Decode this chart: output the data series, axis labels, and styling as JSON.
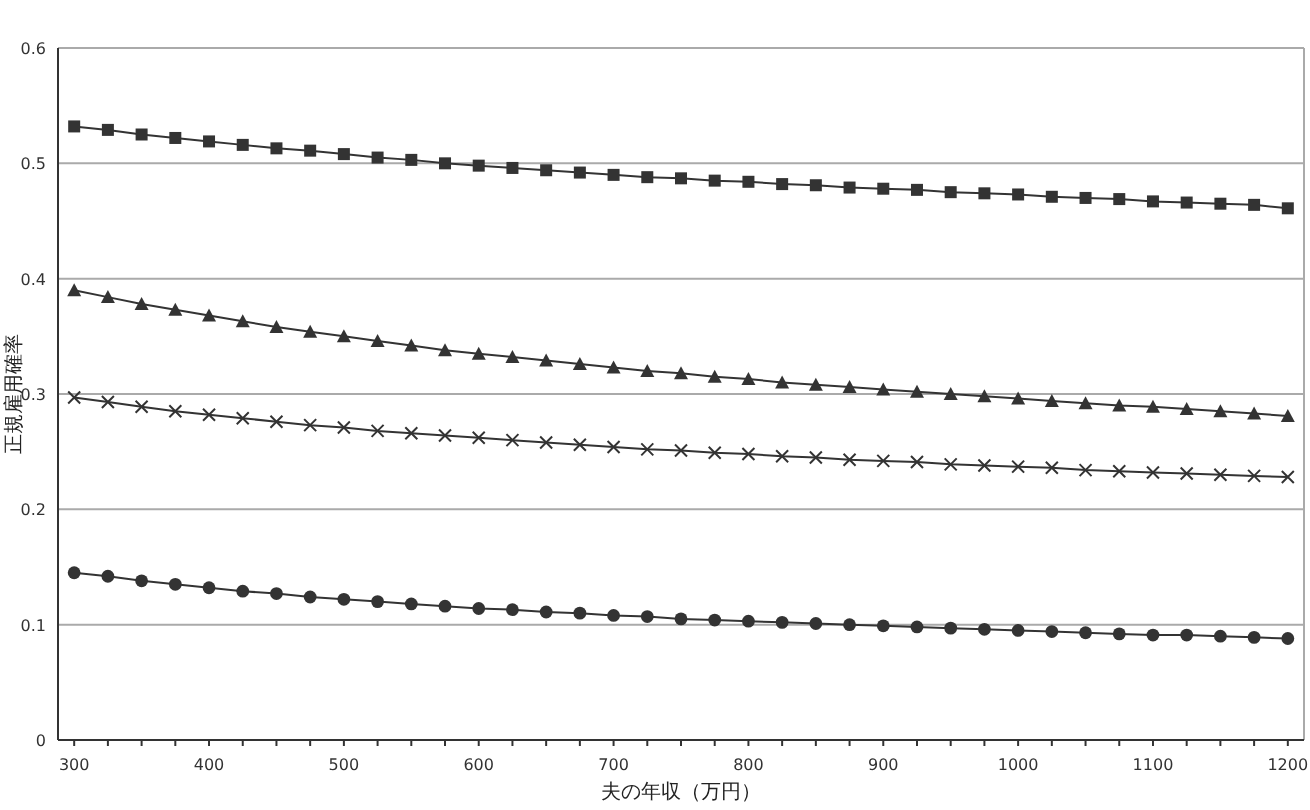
{
  "chart_data": {
    "type": "line",
    "xlabel": "夫の年収（万円）",
    "ylabel": "正規雇用確率",
    "x": [
      300,
      325,
      350,
      375,
      400,
      425,
      450,
      475,
      500,
      525,
      550,
      575,
      600,
      625,
      650,
      675,
      700,
      725,
      750,
      775,
      800,
      825,
      850,
      875,
      900,
      925,
      950,
      975,
      1000,
      1025,
      1050,
      1075,
      1100,
      1125,
      1150,
      1175,
      1200
    ],
    "series": [
      {
        "color": "#333333",
        "marker": "square",
        "values": [
          0.532,
          0.529,
          0.525,
          0.522,
          0.519,
          0.516,
          0.513,
          0.511,
          0.508,
          0.505,
          0.503,
          0.5,
          0.498,
          0.496,
          0.494,
          0.492,
          0.49,
          0.488,
          0.487,
          0.485,
          0.484,
          0.482,
          0.481,
          0.479,
          0.478,
          0.477,
          0.475,
          0.474,
          0.473,
          0.471,
          0.47,
          0.469,
          0.467,
          0.466,
          0.465,
          0.464,
          0.461
        ]
      },
      {
        "color": "#333333",
        "marker": "triangle",
        "values": [
          0.39,
          0.384,
          0.378,
          0.373,
          0.368,
          0.363,
          0.358,
          0.354,
          0.35,
          0.346,
          0.342,
          0.338,
          0.335,
          0.332,
          0.329,
          0.326,
          0.323,
          0.32,
          0.318,
          0.315,
          0.313,
          0.31,
          0.308,
          0.306,
          0.304,
          0.302,
          0.3,
          0.298,
          0.296,
          0.294,
          0.292,
          0.29,
          0.289,
          0.287,
          0.285,
          0.283,
          0.281
        ]
      },
      {
        "color": "#333333",
        "marker": "cross",
        "values": [
          0.297,
          0.293,
          0.289,
          0.285,
          0.282,
          0.279,
          0.276,
          0.273,
          0.271,
          0.268,
          0.266,
          0.264,
          0.262,
          0.26,
          0.258,
          0.256,
          0.254,
          0.252,
          0.251,
          0.249,
          0.248,
          0.246,
          0.245,
          0.243,
          0.242,
          0.241,
          0.239,
          0.238,
          0.237,
          0.236,
          0.234,
          0.233,
          0.232,
          0.231,
          0.23,
          0.229,
          0.228
        ]
      },
      {
        "color": "#333333",
        "marker": "circle",
        "values": [
          0.145,
          0.142,
          0.138,
          0.135,
          0.132,
          0.129,
          0.127,
          0.124,
          0.122,
          0.12,
          0.118,
          0.116,
          0.114,
          0.113,
          0.111,
          0.11,
          0.108,
          0.107,
          0.105,
          0.104,
          0.103,
          0.102,
          0.101,
          0.1,
          0.099,
          0.098,
          0.097,
          0.096,
          0.095,
          0.094,
          0.093,
          0.092,
          0.091,
          0.091,
          0.09,
          0.089,
          0.088
        ]
      }
    ],
    "xlim": [
      288,
      1212
    ],
    "ylim": [
      0,
      0.6
    ],
    "xticks": [
      300,
      {
        "value": 325,
        "label": null
      },
      {
        "value": 350,
        "label": null
      },
      {
        "value": 375,
        "label": null
      },
      400,
      {
        "value": 425,
        "label": null
      },
      {
        "value": 450,
        "label": null
      },
      {
        "value": 475,
        "label": null
      },
      500,
      {
        "value": 525,
        "label": null
      },
      {
        "value": 550,
        "label": null
      },
      {
        "value": 575,
        "label": null
      },
      600,
      {
        "value": 625,
        "label": null
      },
      {
        "value": 650,
        "label": null
      },
      {
        "value": 675,
        "label": null
      },
      700,
      {
        "value": 725,
        "label": null
      },
      {
        "value": 750,
        "label": null
      },
      {
        "value": 775,
        "label": null
      },
      800,
      {
        "value": 825,
        "label": null
      },
      {
        "value": 850,
        "label": null
      },
      {
        "value": 875,
        "label": null
      },
      900,
      {
        "value": 925,
        "label": null
      },
      {
        "value": 950,
        "label": null
      },
      {
        "value": 975,
        "label": null
      },
      1000,
      {
        "value": 1025,
        "label": null
      },
      {
        "value": 1050,
        "label": null
      },
      {
        "value": 1075,
        "label": null
      },
      1100,
      {
        "value": 1125,
        "label": null
      },
      {
        "value": 1150,
        "label": null
      },
      {
        "value": 1175,
        "label": null
      },
      1200
    ],
    "yticks": [
      0,
      0.1,
      0.2,
      0.3,
      0.4,
      0.5,
      0.6
    ],
    "grid": "y"
  }
}
